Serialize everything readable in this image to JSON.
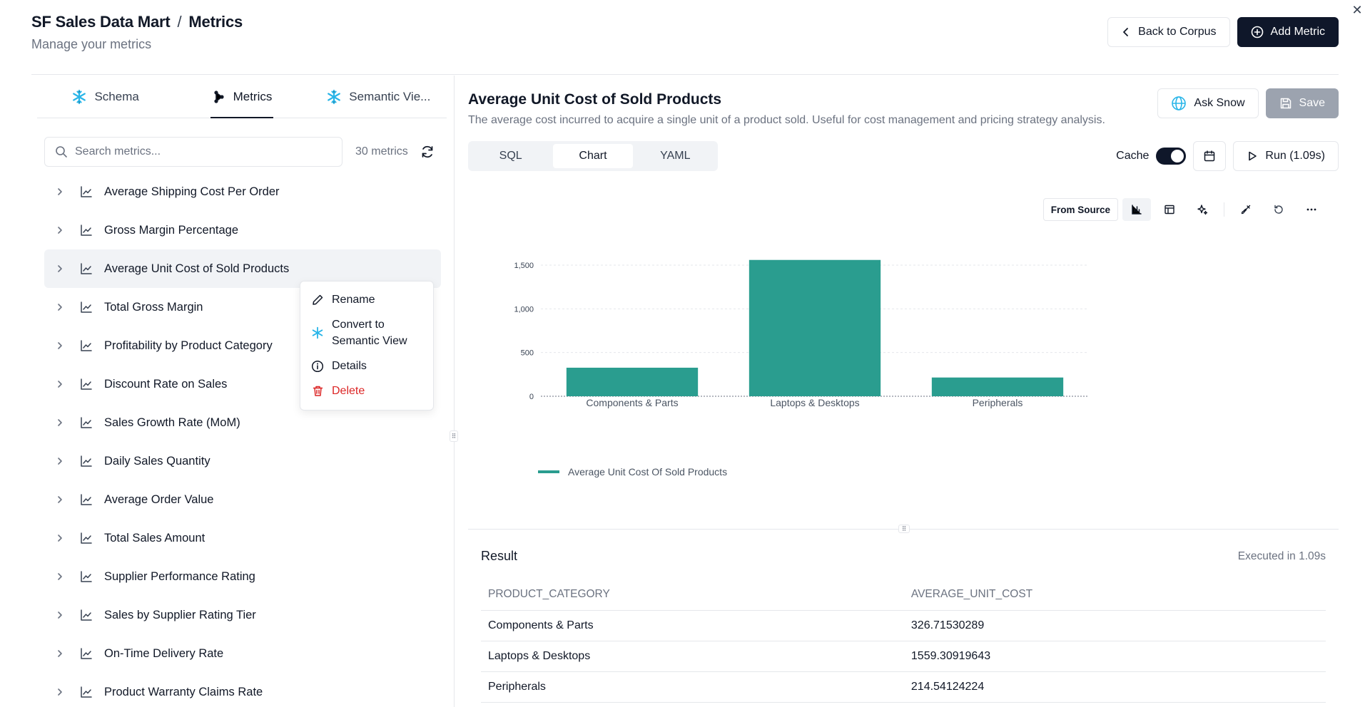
{
  "header": {
    "breadcrumb_root": "SF Sales Data Mart",
    "breadcrumb_sep": "/",
    "breadcrumb_page": "Metrics",
    "subtitle": "Manage your metrics",
    "back_label": "Back to Corpus",
    "add_label": "Add Metric"
  },
  "tabs": [
    {
      "label": "Schema",
      "icon": "snowflake-icon"
    },
    {
      "label": "Metrics",
      "icon": "nodes-icon",
      "active": true
    },
    {
      "label": "Semantic Vie...",
      "icon": "snowflake-icon"
    }
  ],
  "search": {
    "placeholder": "Search metrics...",
    "count_label": "30 metrics"
  },
  "metrics": [
    "Average Shipping Cost Per Order",
    "Gross Margin Percentage",
    "Average Unit Cost of Sold Products",
    "Total Gross Margin",
    "Profitability by Product Category",
    "Discount Rate on Sales",
    "Sales Growth Rate (MoM)",
    "Daily Sales Quantity",
    "Average Order Value",
    "Total Sales Amount",
    "Supplier Performance Rating",
    "Sales by Supplier Rating Tier",
    "On-Time Delivery Rate",
    "Product Warranty Claims Rate"
  ],
  "selected_metric_index": 2,
  "context_menu": {
    "rename": "Rename",
    "convert_line1": "Convert to",
    "convert_line2": "Semantic View",
    "details": "Details",
    "delete": "Delete"
  },
  "detail": {
    "title": "Average Unit Cost of Sold Products",
    "description": "The average cost incurred to acquire a single unit of a product sold. Useful for cost management and pricing strategy analysis.",
    "ask_label": "Ask Snow",
    "save_label": "Save",
    "view_tabs": [
      "SQL",
      "Chart",
      "YAML"
    ],
    "active_view": "Chart",
    "cache_label": "Cache",
    "cache_on": true,
    "run_label": "Run (1.09s)",
    "from_source_label": "From Source"
  },
  "chart_data": {
    "type": "bar",
    "categories": [
      "Components & Parts",
      "Laptops & Desktops",
      "Peripherals"
    ],
    "series": [
      {
        "name": "Average Unit Cost Of Sold Products",
        "values": [
          326.71530289,
          1559.30919643,
          214.54124224
        ]
      }
    ],
    "ylim": [
      0,
      1500
    ],
    "yticks": [
      0,
      500,
      1000,
      1500
    ],
    "ytick_labels": [
      "0",
      "500",
      "1,000",
      "1,500"
    ],
    "grid": true,
    "legend": "bottom-left",
    "color": "#2a9d8f"
  },
  "result": {
    "title": "Result",
    "executed": "Executed in 1.09s",
    "columns": [
      "PRODUCT_CATEGORY",
      "AVERAGE_UNIT_COST"
    ],
    "rows": [
      [
        "Components & Parts",
        "326.71530289"
      ],
      [
        "Laptops & Desktops",
        "1559.30919643"
      ],
      [
        "Peripherals",
        "214.54124224"
      ]
    ]
  }
}
